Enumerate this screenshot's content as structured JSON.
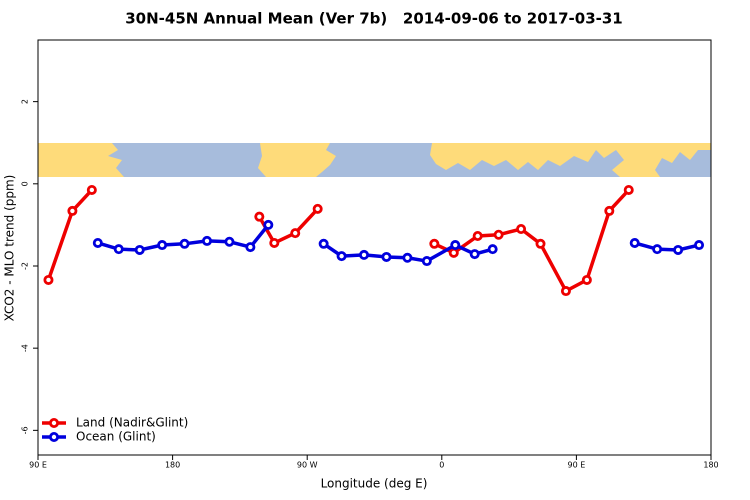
{
  "chart_data": {
    "type": "line",
    "title": "30N-45N Annual Mean (Ver 7b)   2014-09-06 to 2017-03-31",
    "xlabel": "Longitude (deg E)",
    "ylabel": "XCO2 - MLO trend (ppm)",
    "xlim": [
      90,
      540
    ],
    "ylim": [
      -6.6,
      3.5
    ],
    "xticks": [
      {
        "value": 90,
        "label": "90 E"
      },
      180,
      {
        "value": 270,
        "label": "90 W"
      },
      {
        "value": 360,
        "label": "0"
      },
      {
        "value": 450,
        "label": "90 E"
      },
      {
        "value": 540,
        "label": "180"
      }
    ],
    "yticks": [
      2,
      0,
      -2,
      -4,
      -6
    ],
    "legend": "bottom-left",
    "series": [
      {
        "name": "Land (Nadir&Glint)",
        "color": "#ee0000",
        "x": [
          97,
          113,
          126,
          null,
          238,
          248,
          262,
          277,
          null,
          355,
          368,
          384,
          398,
          413,
          426,
          443,
          457,
          472,
          485
        ],
        "values": [
          -2.34,
          -0.66,
          -0.15,
          null,
          -0.8,
          -1.44,
          -1.2,
          -0.61,
          null,
          -1.46,
          -1.68,
          -1.27,
          -1.24,
          -1.1,
          -1.46,
          -2.61,
          -2.34,
          -0.66,
          -0.15
        ]
      },
      {
        "name": "Ocean (Glint)",
        "color": "#0000dd",
        "x": [
          130,
          144,
          158,
          173,
          188,
          203,
          218,
          232,
          244,
          null,
          281,
          293,
          308,
          323,
          337,
          350,
          369,
          382,
          394,
          null,
          489,
          504,
          518,
          532
        ],
        "values": [
          -1.44,
          -1.59,
          -1.61,
          -1.49,
          -1.46,
          -1.39,
          -1.41,
          -1.54,
          -1.0,
          null,
          -1.46,
          -1.76,
          -1.73,
          -1.78,
          -1.8,
          -1.88,
          -1.49,
          -1.71,
          -1.59,
          null,
          -1.44,
          -1.59,
          -1.61,
          -1.49
        ]
      }
    ]
  }
}
